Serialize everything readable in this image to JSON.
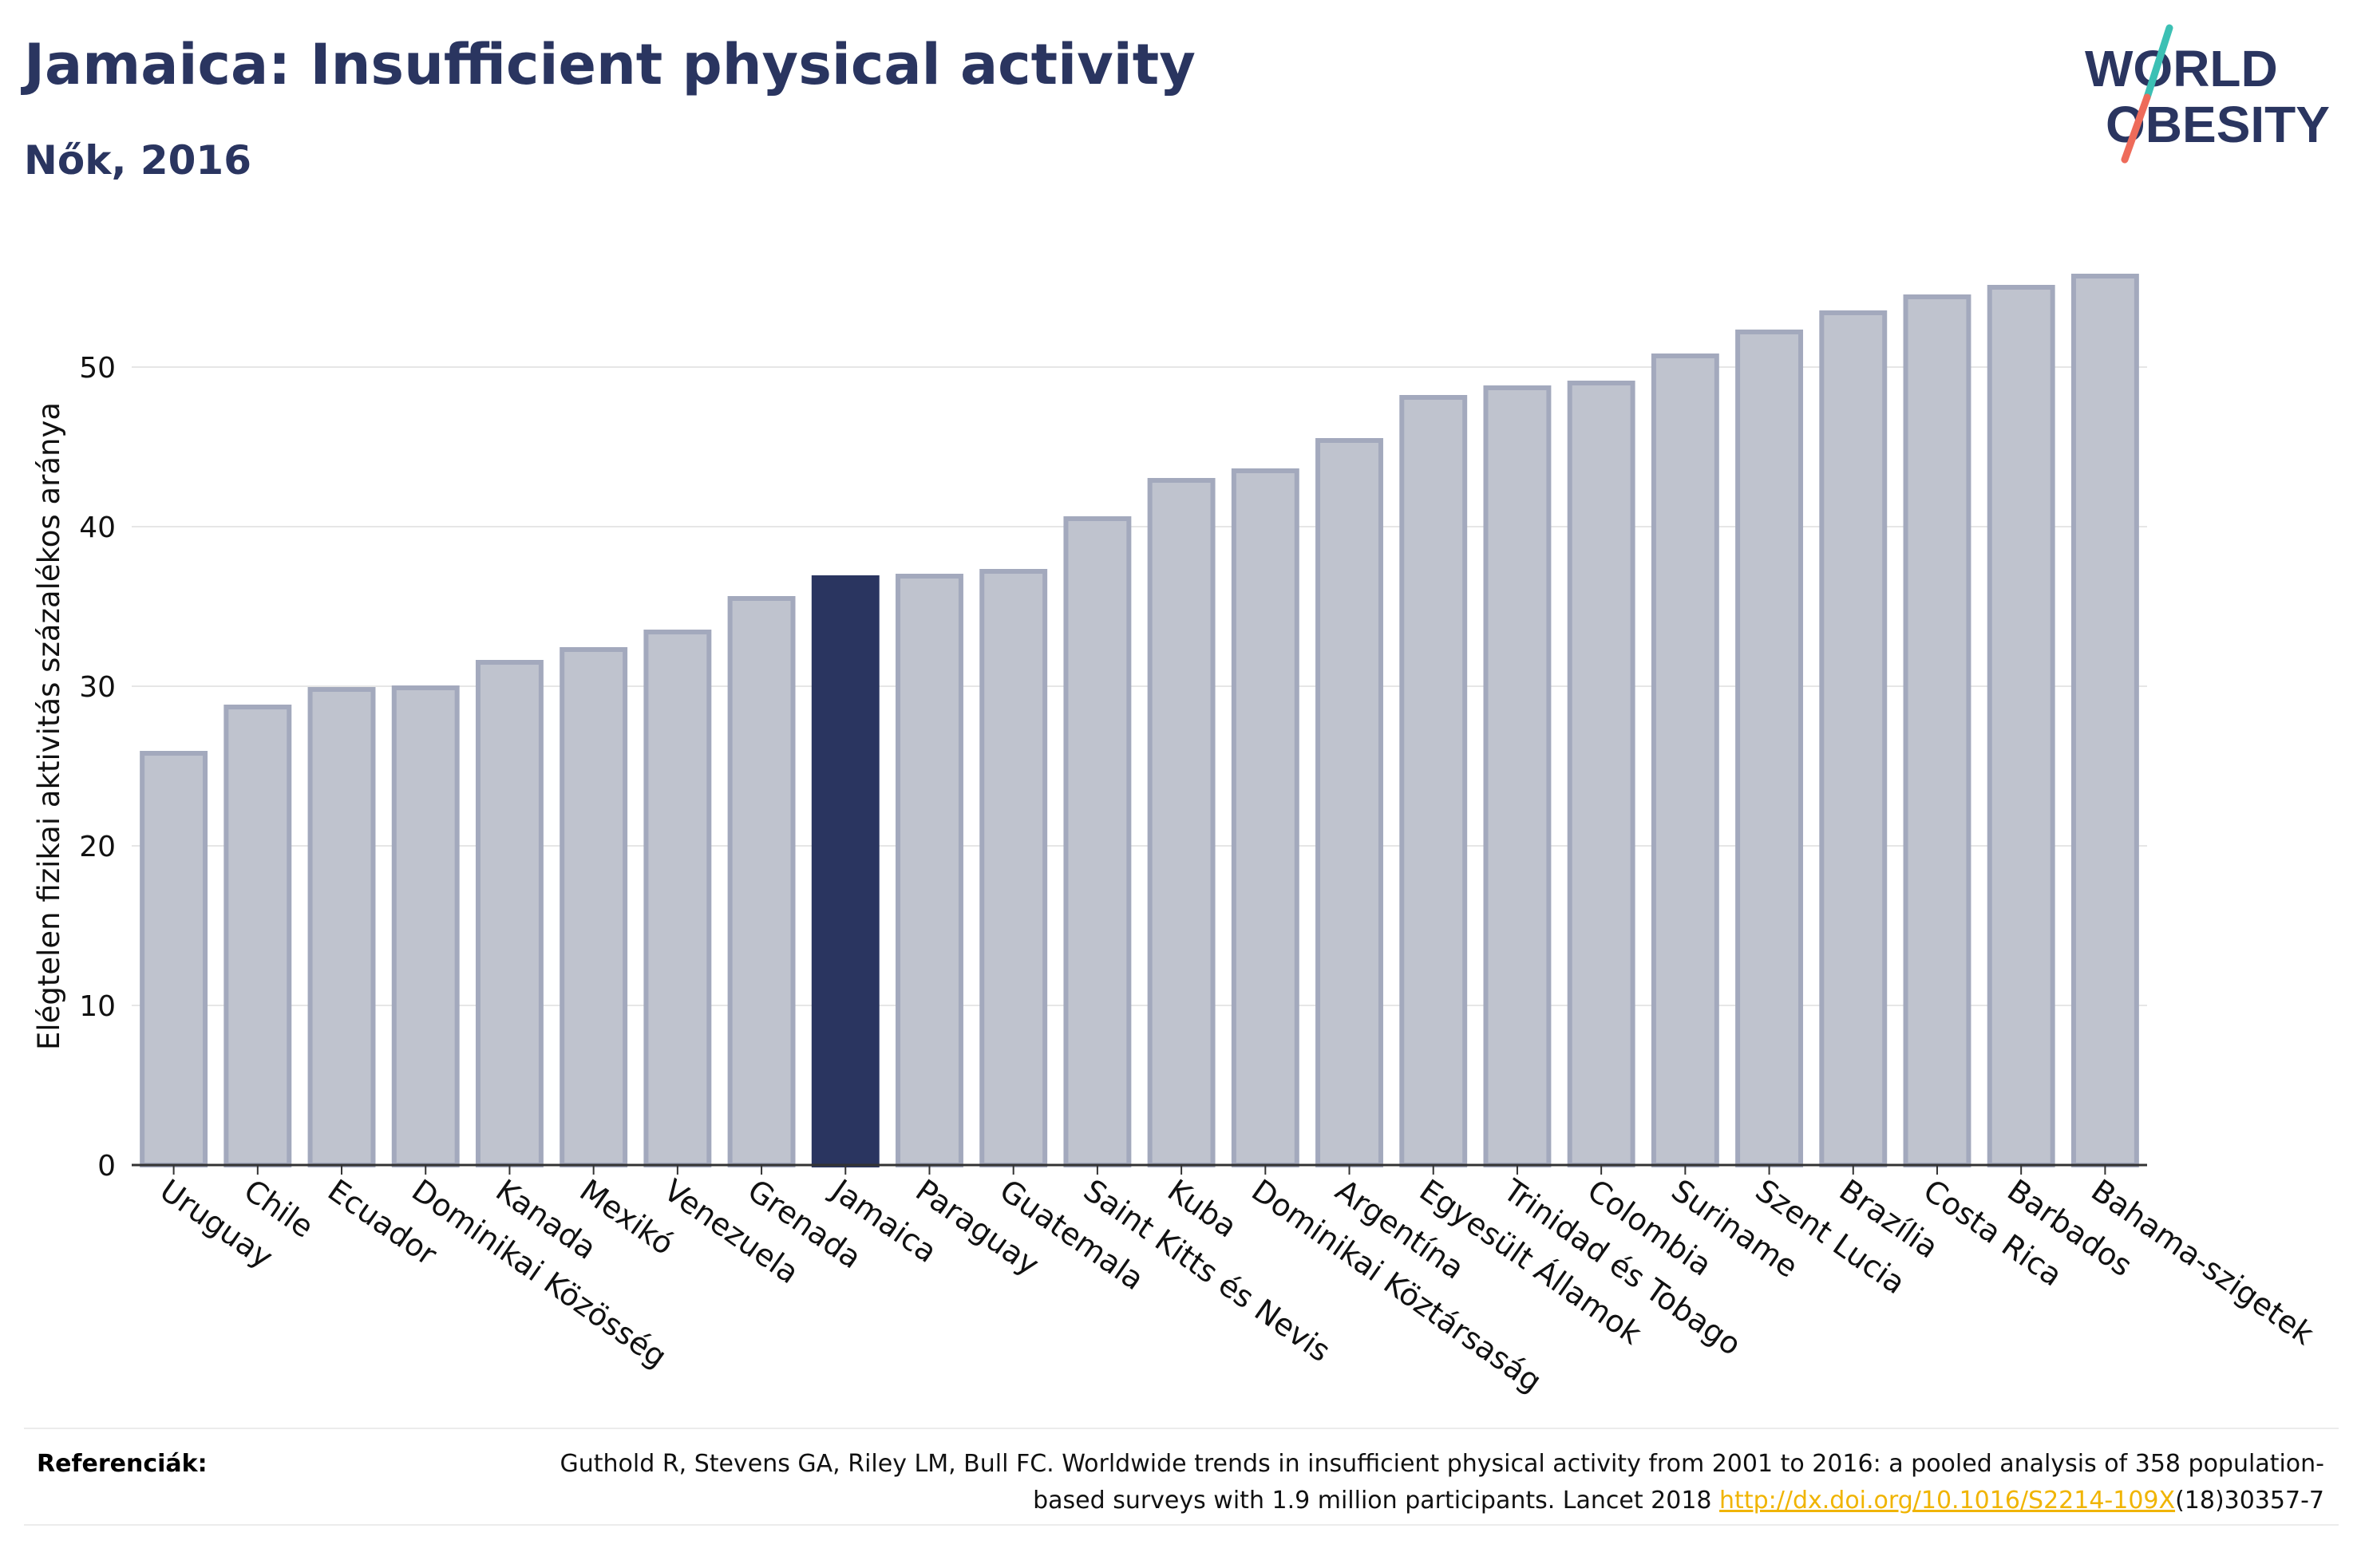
{
  "header": {
    "title": "Jamaica: Insufficient physical activity",
    "subtitle": "Nők, 2016"
  },
  "logo": {
    "line1": "WORLD",
    "line2": "OBESITY",
    "text_color": "#2a3560",
    "slash_top_color": "#3cc0b4",
    "slash_bottom_color": "#ee6b5a"
  },
  "chart_data": {
    "type": "bar",
    "categories": [
      "Uruguay",
      "Chile",
      "Ecuador",
      "Dominikai Közösség",
      "Kanada",
      "Mexikó",
      "Venezuela",
      "Grenada",
      "Jamaica",
      "Paraguay",
      "Guatemala",
      "Saint Kitts és Nevis",
      "Kuba",
      "Dominikai Köztársaság",
      "Argentína",
      "Egyesült Államok",
      "Trinidad és Tobago",
      "Colombia",
      "Suriname",
      "Szent Lucia",
      "Brazília",
      "Costa Rica",
      "Barbados",
      "Bahama-szigetek"
    ],
    "values": [
      25.8,
      28.7,
      29.8,
      29.9,
      31.5,
      32.3,
      33.4,
      35.5,
      36.8,
      36.9,
      37.2,
      40.5,
      42.9,
      43.5,
      45.4,
      48.1,
      48.7,
      49.0,
      50.7,
      52.2,
      53.4,
      54.4,
      55.0,
      55.7
    ],
    "highlight": "Jamaica",
    "ylabel": "Elégtelen fizikai aktivitás százalékos aránya",
    "xlabel": "",
    "ylim": [
      0,
      58
    ],
    "yticks": [
      0,
      10,
      20,
      30,
      40,
      50
    ],
    "grid": true,
    "legend": "none",
    "bar_color": "#bfc3ce",
    "bar_edge_color": "#a3a9bd",
    "highlight_color": "#2a3560"
  },
  "references": {
    "label": "Referenciák:",
    "text_before": "Guthold R, Stevens GA, Riley LM, Bull FC. Worldwide trends in insufficient physical activity from 2001 to 2016: a pooled analysis of 358 population-based surveys with 1.9 million participants. Lancet 2018 ",
    "link": "http://dx.doi.org/10.1016/S2214-109X",
    "text_after": "(18)30357-7"
  }
}
